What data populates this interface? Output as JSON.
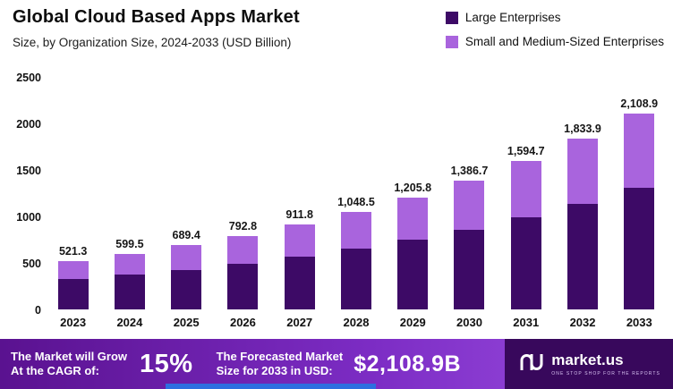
{
  "title": "Global Cloud Based Apps Market",
  "subtitle": "Size, by Organization Size, 2024-2033 (USD Billion)",
  "legend": [
    {
      "label": "Large Enterprises",
      "color": "#3d0a66"
    },
    {
      "label": "Small and Medium-Sized Enterprises",
      "color": "#a964dd"
    }
  ],
  "chart_data": {
    "type": "bar",
    "stacked": true,
    "title": "Global Cloud Based Apps Market Size, by Organization Size, 2024-2033 (USD Billion)",
    "categories": [
      "2023",
      "2024",
      "2025",
      "2026",
      "2027",
      "2028",
      "2029",
      "2030",
      "2031",
      "2032",
      "2033"
    ],
    "series": [
      {
        "name": "Large Enterprises",
        "color": "#3d0a66",
        "values": [
          323,
          372,
          427,
          491,
          565,
          650,
          748,
          860,
          989,
          1137,
          1307
        ]
      },
      {
        "name": "Small and Medium-Sized Enterprises",
        "color": "#a964dd",
        "values": [
          198.3,
          227.5,
          262.4,
          301.8,
          346.8,
          398.5,
          457.8,
          526.7,
          605.7,
          696.9,
          801.9
        ]
      }
    ],
    "totals": [
      521.3,
      599.5,
      689.4,
      792.8,
      911.8,
      1048.5,
      1205.8,
      1386.7,
      1594.7,
      1833.9,
      2108.9
    ],
    "total_labels": [
      "521.3",
      "599.5",
      "689.4",
      "792.8",
      "911.8",
      "1,048.5",
      "1,205.8",
      "1,386.7",
      "1,594.7",
      "1,833.9",
      "2,108.9"
    ],
    "xlabel": "",
    "ylabel": "",
    "ylim": [
      0,
      2500
    ],
    "yticks": [
      0,
      500,
      1000,
      1500,
      2000,
      2500
    ],
    "grid": false,
    "legend_position": "top-right"
  },
  "footer": {
    "cagr_label_line1": "The Market will Grow",
    "cagr_label_line2": "At the CAGR of:",
    "cagr_value": "15%",
    "forecast_label_line1": "The Forecasted Market",
    "forecast_label_line2": "Size for 2033 in USD:",
    "forecast_value": "$2,108.9B",
    "brand": "market.us",
    "brand_tagline": "One Stop Shop For The Reports"
  }
}
